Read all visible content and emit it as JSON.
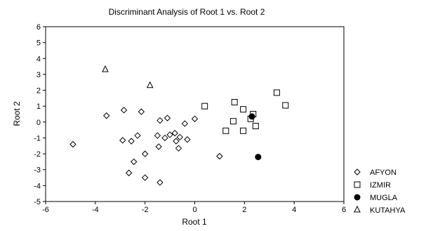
{
  "chart_data": {
    "type": "scatter",
    "title": "Discriminant Analysis of Root 1 vs. Root 2",
    "xlabel": "Root 1",
    "ylabel": "Root 2",
    "xlim": [
      -6,
      6
    ],
    "ylim": [
      -5,
      6
    ],
    "xticks": [
      "-6",
      "-4",
      "-2",
      "0",
      "2",
      "4",
      "6"
    ],
    "yticks": [
      "-5",
      "-4",
      "-3",
      "-2",
      "-1",
      "0",
      "1",
      "2",
      "3",
      "4",
      "5",
      "6"
    ],
    "grid": false,
    "legend_position": "right",
    "series": [
      {
        "name": "AFYON",
        "marker": "circle-open",
        "points": [
          [
            -4.9,
            -1.4
          ],
          [
            -3.55,
            0.4
          ],
          [
            -2.85,
            0.75
          ],
          [
            -2.15,
            0.65
          ],
          [
            -2.9,
            -1.15
          ],
          [
            -2.55,
            -1.2
          ],
          [
            -2.3,
            -0.85
          ],
          [
            -2.0,
            -2.0
          ],
          [
            -2.45,
            -2.5
          ],
          [
            -2.65,
            -3.2
          ],
          [
            -2.0,
            -3.5
          ],
          [
            -1.4,
            -3.8
          ],
          [
            -1.4,
            0.1
          ],
          [
            -1.1,
            0.25
          ],
          [
            -1.5,
            -0.85
          ],
          [
            -1.2,
            -1.0
          ],
          [
            -1.0,
            -0.8
          ],
          [
            -0.8,
            -0.7
          ],
          [
            -0.6,
            -0.95
          ],
          [
            -0.75,
            -1.2
          ],
          [
            -0.65,
            -1.65
          ],
          [
            -1.45,
            -1.55
          ],
          [
            -0.4,
            -0.1
          ],
          [
            -0.3,
            -1.1
          ],
          [
            0.0,
            0.2
          ],
          [
            1.0,
            -2.15
          ]
        ]
      },
      {
        "name": "IZMIR",
        "marker": "square-open",
        "points": [
          [
            0.4,
            1.0
          ],
          [
            1.6,
            1.25
          ],
          [
            1.95,
            0.8
          ],
          [
            2.25,
            0.2
          ],
          [
            2.35,
            0.5
          ],
          [
            2.45,
            -0.25
          ],
          [
            1.55,
            0.05
          ],
          [
            1.25,
            -0.55
          ],
          [
            1.95,
            -0.55
          ],
          [
            3.3,
            1.85
          ],
          [
            3.65,
            1.05
          ]
        ]
      },
      {
        "name": "MUGLA",
        "marker": "circle-filled",
        "points": [
          [
            2.3,
            0.35
          ],
          [
            2.55,
            -2.2
          ]
        ]
      },
      {
        "name": "KUTAHYA",
        "marker": "triangle-open",
        "points": [
          [
            -3.6,
            3.3
          ],
          [
            -1.8,
            2.3
          ]
        ]
      }
    ]
  }
}
